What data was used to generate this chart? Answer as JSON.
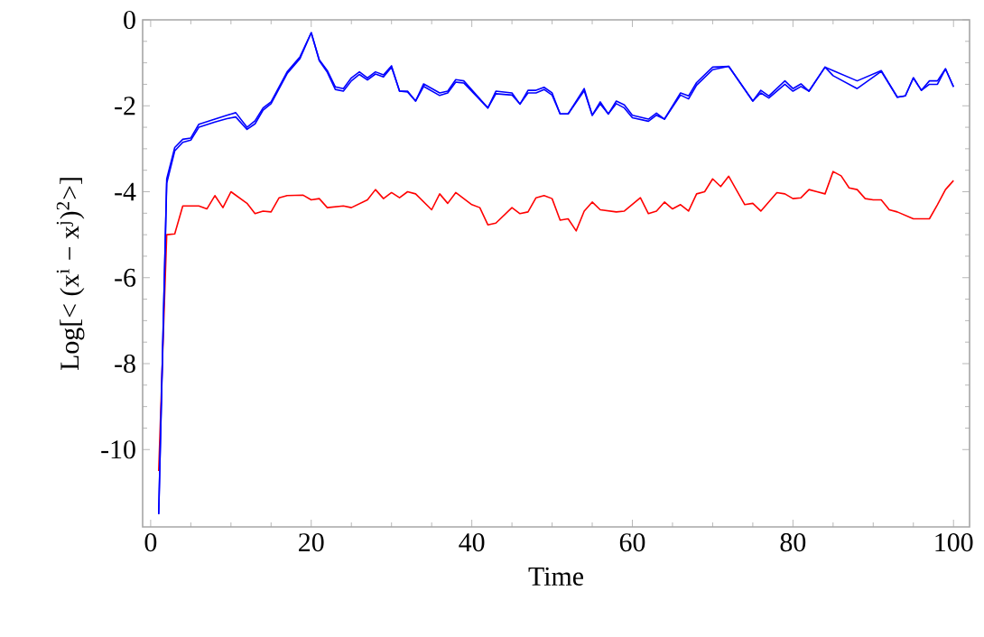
{
  "chart_data": {
    "type": "line",
    "xlabel": "Time",
    "ylabel": "Log[< (x$^{i}$ − x$^{j}$)$^{2}$>]",
    "xlim": [
      -1,
      102
    ],
    "ylim": [
      -11.8,
      0
    ],
    "xticks": [
      0,
      20,
      40,
      60,
      80,
      100
    ],
    "yticks": [
      -10,
      -8,
      -6,
      -4,
      -2,
      0
    ],
    "grid": false,
    "marker": "none",
    "line_style": "solid",
    "series": [
      {
        "color": "#ff0000",
        "x": [
          1,
          2,
          3,
          4,
          6,
          7,
          8,
          9,
          10,
          12,
          13,
          14,
          15,
          16,
          17,
          19,
          20,
          21,
          22,
          24,
          25,
          27,
          28,
          29,
          30,
          31,
          32,
          33,
          35,
          36,
          37,
          38,
          40,
          41,
          42,
          43,
          45,
          46,
          47,
          48,
          49,
          50,
          51,
          52,
          53,
          54,
          55,
          56,
          58,
          59,
          61,
          62,
          63,
          64,
          65,
          66,
          67,
          68,
          69,
          70,
          71,
          72,
          74,
          75,
          76,
          78,
          79,
          80,
          81,
          82,
          83,
          84,
          85,
          86,
          87,
          88,
          89,
          90,
          91,
          92,
          93,
          95,
          97,
          98,
          99,
          100
        ],
        "values": [
          -10.5,
          -5.0,
          -4.98,
          -4.33,
          -4.33,
          -4.4,
          -4.09,
          -4.37,
          -4.0,
          -4.27,
          -4.51,
          -4.45,
          -4.47,
          -4.14,
          -4.09,
          -4.08,
          -4.19,
          -4.16,
          -4.37,
          -4.33,
          -4.37,
          -4.19,
          -3.95,
          -4.16,
          -4.02,
          -4.14,
          -4.0,
          -4.05,
          -4.42,
          -4.05,
          -4.27,
          -4.02,
          -4.3,
          -4.37,
          -4.77,
          -4.73,
          -4.37,
          -4.51,
          -4.47,
          -4.14,
          -4.09,
          -4.16,
          -4.66,
          -4.63,
          -4.91,
          -4.45,
          -4.24,
          -4.42,
          -4.47,
          -4.45,
          -4.14,
          -4.51,
          -4.45,
          -4.24,
          -4.4,
          -4.3,
          -4.45,
          -4.05,
          -4.0,
          -3.7,
          -3.88,
          -3.64,
          -4.3,
          -4.27,
          -4.45,
          -4.02,
          -4.05,
          -4.16,
          -4.14,
          -3.95,
          -4.0,
          -4.05,
          -3.53,
          -3.63,
          -3.91,
          -3.95,
          -4.16,
          -4.19,
          -4.19,
          -4.42,
          -4.47,
          -4.63,
          -4.63,
          -4.3,
          -3.95,
          -3.74
        ]
      },
      {
        "color": "#0000ff",
        "x": [
          1,
          2,
          3,
          4,
          5,
          6,
          8,
          9.5,
          10.6,
          12,
          13,
          14,
          15,
          17,
          18.6,
          20,
          21,
          22,
          23,
          24,
          25,
          26,
          27,
          28,
          29,
          30,
          31,
          32,
          33,
          34,
          36,
          37,
          38,
          39,
          42,
          43,
          45,
          46,
          47,
          48,
          49,
          50,
          51,
          52,
          54,
          55,
          56,
          57,
          58,
          59,
          60,
          62,
          63,
          64,
          66,
          67,
          68,
          70,
          72,
          75,
          76,
          77,
          79,
          80,
          81,
          82,
          84,
          85,
          88,
          91,
          93,
          94,
          95,
          96,
          97,
          98,
          99,
          100
        ],
        "values": [
          -11.5,
          -3.7,
          -2.97,
          -2.78,
          -2.75,
          -2.43,
          -2.31,
          -2.22,
          -2.16,
          -2.5,
          -2.35,
          -2.05,
          -1.91,
          -1.21,
          -0.86,
          -0.3,
          -0.93,
          -1.18,
          -1.56,
          -1.6,
          -1.35,
          -1.21,
          -1.35,
          -1.21,
          -1.28,
          -1.07,
          -1.66,
          -1.66,
          -1.89,
          -1.49,
          -1.7,
          -1.66,
          -1.39,
          -1.42,
          -2.05,
          -1.66,
          -1.7,
          -1.96,
          -1.64,
          -1.64,
          -1.57,
          -1.7,
          -2.19,
          -2.19,
          -1.6,
          -2.22,
          -1.91,
          -2.19,
          -1.89,
          -1.98,
          -2.22,
          -2.31,
          -2.17,
          -2.31,
          -1.7,
          -1.77,
          -1.46,
          -1.1,
          -1.08,
          -1.89,
          -1.64,
          -1.77,
          -1.42,
          -1.6,
          -1.49,
          -1.66,
          -1.1,
          -1.18,
          -1.42,
          -1.18,
          -1.8,
          -1.77,
          -1.35,
          -1.64,
          -1.42,
          -1.42,
          -1.14,
          -1.56
        ]
      },
      {
        "color": "#0000ff",
        "x": [
          1,
          2,
          3,
          4,
          5,
          6,
          8,
          9.5,
          10.6,
          12,
          13,
          14,
          15,
          17,
          18.6,
          20,
          21,
          22,
          23,
          24,
          25,
          26,
          27,
          28,
          29,
          30,
          31,
          32,
          33,
          34,
          36,
          37,
          38,
          39,
          42,
          43,
          45,
          46,
          47,
          48,
          49,
          50,
          51,
          52,
          54,
          55,
          56,
          57,
          58,
          59,
          60,
          62,
          63,
          64,
          66,
          67,
          68,
          70,
          72,
          75,
          76,
          77,
          79,
          80,
          81,
          82,
          84,
          85,
          88,
          91,
          93,
          94,
          95,
          96,
          97,
          98,
          99,
          100
        ],
        "values": [
          -11.5,
          -3.8,
          -3.05,
          -2.85,
          -2.8,
          -2.5,
          -2.38,
          -2.3,
          -2.26,
          -2.55,
          -2.42,
          -2.1,
          -1.95,
          -1.25,
          -0.9,
          -0.3,
          -0.95,
          -1.22,
          -1.62,
          -1.66,
          -1.42,
          -1.27,
          -1.4,
          -1.26,
          -1.33,
          -1.1,
          -1.66,
          -1.68,
          -1.89,
          -1.55,
          -1.76,
          -1.7,
          -1.45,
          -1.47,
          -2.05,
          -1.72,
          -1.75,
          -1.96,
          -1.7,
          -1.7,
          -1.62,
          -1.75,
          -2.19,
          -2.19,
          -1.65,
          -2.22,
          -1.96,
          -2.19,
          -1.95,
          -2.05,
          -2.28,
          -2.36,
          -2.22,
          -2.31,
          -1.75,
          -1.84,
          -1.52,
          -1.16,
          -1.08,
          -1.89,
          -1.7,
          -1.82,
          -1.5,
          -1.66,
          -1.55,
          -1.66,
          -1.1,
          -1.3,
          -1.6,
          -1.2,
          -1.8,
          -1.77,
          -1.35,
          -1.64,
          -1.5,
          -1.5,
          -1.14,
          -1.56
        ]
      }
    ]
  }
}
